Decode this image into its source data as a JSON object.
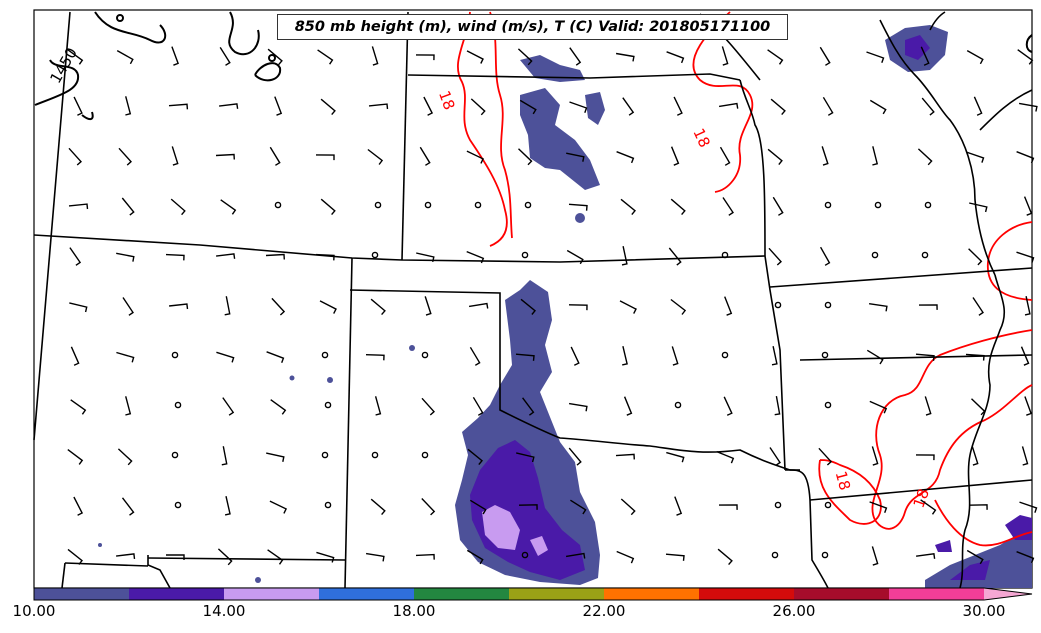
{
  "title": "850 mb height (m), wind (m/s), T (C) Valid: 201805171100",
  "contour_labels": {
    "height": "1450",
    "temperature": "18"
  },
  "colorbar": {
    "min": 10,
    "max": 30,
    "step": 2,
    "tick_labels": [
      "10.00",
      "14.00",
      "18.00",
      "22.00",
      "26.00",
      "30.00"
    ],
    "colors": [
      "#4d5199",
      "#4a1aa8",
      "#c89bf0",
      "#2f6fdc",
      "#238740",
      "#9aa216",
      "#ff7200",
      "#d40b0b",
      "#a60c2b",
      "#f23e98"
    ],
    "extend_color": "#f5a7d3"
  },
  "colors": {
    "state_border": "#000000",
    "temperature_contour": "#ff0000",
    "height_contour": "#000000",
    "wind_barb": "#000000"
  }
}
